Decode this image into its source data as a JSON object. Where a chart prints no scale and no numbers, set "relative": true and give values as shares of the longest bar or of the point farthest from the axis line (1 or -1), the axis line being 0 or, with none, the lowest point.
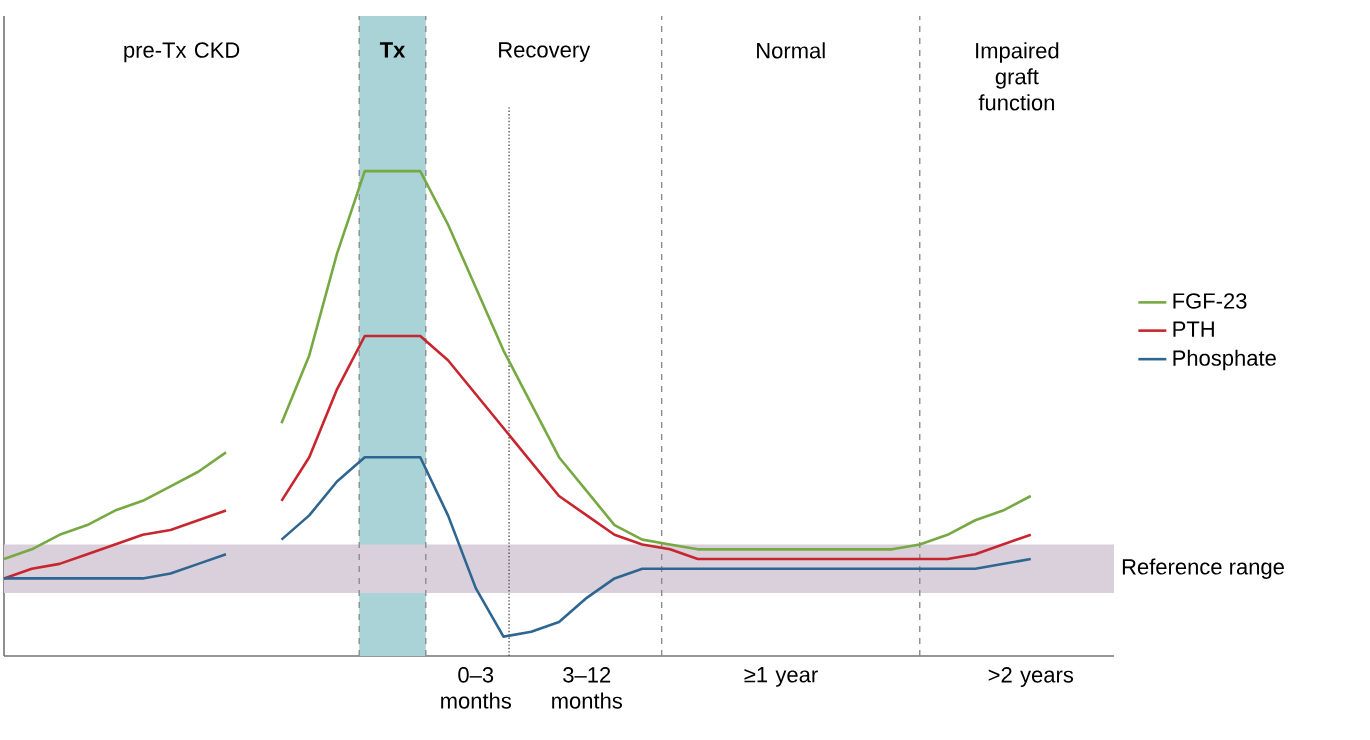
{
  "chart_data": {
    "type": "line",
    "relative": true,
    "legend": "right",
    "marker": "none",
    "line_style": "solid",
    "categories": [
      null,
      null,
      null,
      null,
      null,
      null,
      null,
      null,
      null,
      null,
      null,
      null,
      null,
      null,
      null,
      null,
      null,
      "0–3 months",
      null,
      null,
      null,
      "3–12 months",
      null,
      null,
      null,
      null,
      null,
      null,
      "≥1 year",
      null,
      null,
      null,
      null,
      null,
      null,
      null,
      null,
      ">2 years",
      null,
      null,
      null
    ],
    "series": [
      {
        "name": "FGF-23",
        "color": "#77a943",
        "values": [
          0.2,
          0.22,
          0.25,
          0.27,
          0.3,
          0.32,
          0.35,
          0.38,
          0.42,
          null,
          0.48,
          0.62,
          0.83,
          1,
          1,
          1,
          0.89,
          0.76,
          0.63,
          0.52,
          0.41,
          0.34,
          0.27,
          0.24,
          0.23,
          0.22,
          0.22,
          0.22,
          0.22,
          0.22,
          0.22,
          0.22,
          0.22,
          0.23,
          0.25,
          0.28,
          0.3,
          0.33,
          null,
          null,
          null
        ]
      },
      {
        "name": "PTH",
        "color": "#c8262f",
        "values": [
          0.16,
          0.18,
          0.19,
          0.21,
          0.23,
          0.25,
          0.26,
          0.28,
          0.3,
          null,
          0.32,
          0.41,
          0.55,
          0.66,
          0.66,
          0.66,
          0.61,
          0.54,
          0.47,
          0.4,
          0.33,
          0.29,
          0.25,
          0.23,
          0.22,
          0.2,
          0.2,
          0.2,
          0.2,
          0.2,
          0.2,
          0.2,
          0.2,
          0.2,
          0.2,
          0.21,
          0.23,
          0.25,
          null,
          null,
          null
        ]
      },
      {
        "name": "Phosphate",
        "color": "#2e6691",
        "values": [
          0.16,
          0.16,
          0.16,
          0.16,
          0.16,
          0.16,
          0.17,
          0.19,
          0.21,
          null,
          0.24,
          0.29,
          0.36,
          0.41,
          0.41,
          0.41,
          0.29,
          0.14,
          0.04,
          0.05,
          0.07,
          0.12,
          0.16,
          0.18,
          0.18,
          0.18,
          0.18,
          0.18,
          0.18,
          0.18,
          0.18,
          0.18,
          0.18,
          0.18,
          0.18,
          0.18,
          0.19,
          0.2,
          null,
          null,
          null
        ]
      }
    ],
    "bands": [
      {
        "axis": "y",
        "from": 0.13,
        "to": 0.23,
        "label": "Reference range",
        "color": "#d9d0dc"
      }
    ],
    "annotations": [
      "pre-Tx CKD",
      "Tx",
      "Recovery",
      "Normal",
      "Impaired graft function"
    ]
  }
}
